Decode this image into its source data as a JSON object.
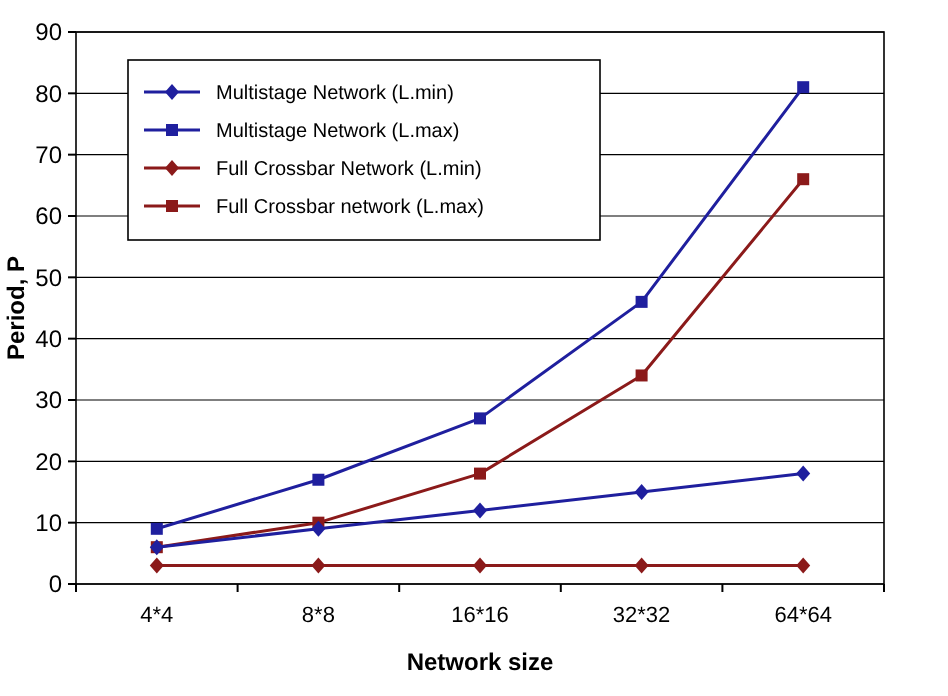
{
  "chart_data": {
    "type": "line",
    "xlabel": "Network size",
    "ylabel": "Period, P",
    "categories": [
      "4*4",
      "8*8",
      "16*16",
      "32*32",
      "64*64"
    ],
    "series": [
      {
        "name": "Multistage Network (L.min)",
        "color": "#1f1f9e",
        "marker": "diamond",
        "values": [
          6,
          9,
          12,
          15,
          18
        ]
      },
      {
        "name": "Multistage Network (L.max)",
        "color": "#1f1f9e",
        "marker": "square",
        "values": [
          9,
          17,
          27,
          46,
          81
        ]
      },
      {
        "name": "Full Crossbar Network (L.min)",
        "color": "#8b1a1a",
        "marker": "diamond",
        "values": [
          3,
          3,
          3,
          3,
          3
        ]
      },
      {
        "name": "Full Crossbar network (L.max)",
        "color": "#8b1a1a",
        "marker": "square",
        "values": [
          6,
          10,
          18,
          34,
          66
        ]
      }
    ],
    "ylim": [
      0,
      90
    ],
    "yticks": [
      0,
      10,
      20,
      30,
      40,
      50,
      60,
      70,
      80,
      90
    ],
    "grid": "y",
    "legend": "top left"
  }
}
